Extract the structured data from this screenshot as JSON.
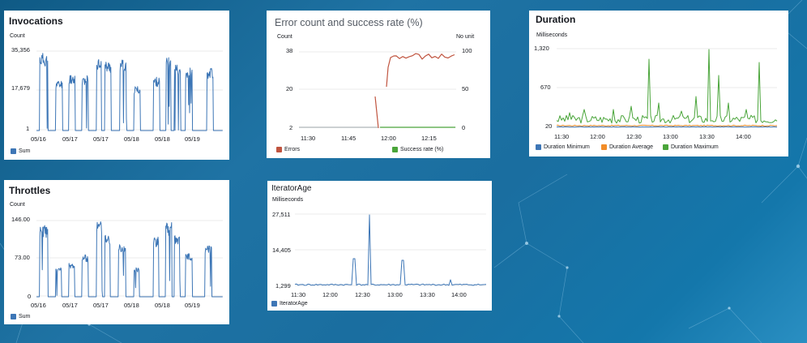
{
  "colors": {
    "blue": "#3d76b6",
    "red": "#c0543f",
    "green": "#4aa53a",
    "orange": "#f28c28",
    "grid": "#e4e4e4"
  },
  "invocations": {
    "title": "Invocations",
    "unit": "Count",
    "yticks": [
      "35,356",
      "17,679",
      "1"
    ],
    "xticks": [
      "05/16",
      "05/17",
      "05/17",
      "05/18",
      "05/18",
      "05/19"
    ],
    "legend": "Sum"
  },
  "errors": {
    "title": "Error count and success rate (%)",
    "unit_left": "Count",
    "unit_right": "No unit",
    "yticks_left": [
      "38",
      "20",
      "2"
    ],
    "yticks_right": [
      "100",
      "50",
      "0"
    ],
    "xticks": [
      "11:30",
      "11:45",
      "12:00",
      "12:15"
    ],
    "legend": [
      "Errors",
      "Success rate (%)"
    ]
  },
  "duration": {
    "title": "Duration",
    "unit": "Milliseconds",
    "yticks": [
      "1,320",
      "670",
      "20"
    ],
    "xticks": [
      "11:30",
      "12:00",
      "12:30",
      "13:00",
      "13:30",
      "14:00"
    ],
    "legend": [
      "Duration Minimum",
      "Duration Average",
      "Duration Maximum"
    ]
  },
  "throttles": {
    "title": "Throttles",
    "unit": "Count",
    "yticks": [
      "146.00",
      "73.00",
      "0"
    ],
    "xticks": [
      "05/16",
      "05/17",
      "05/17",
      "05/18",
      "05/18",
      "05/19"
    ],
    "legend": "Sum"
  },
  "iterator": {
    "title": "IteratorAge",
    "unit": "Milliseconds",
    "yticks": [
      "27,511",
      "14,405",
      "1,299"
    ],
    "xticks": [
      "11:30",
      "12:00",
      "12:30",
      "13:00",
      "13:30",
      "14:00"
    ],
    "legend": "IteratorAge"
  }
}
